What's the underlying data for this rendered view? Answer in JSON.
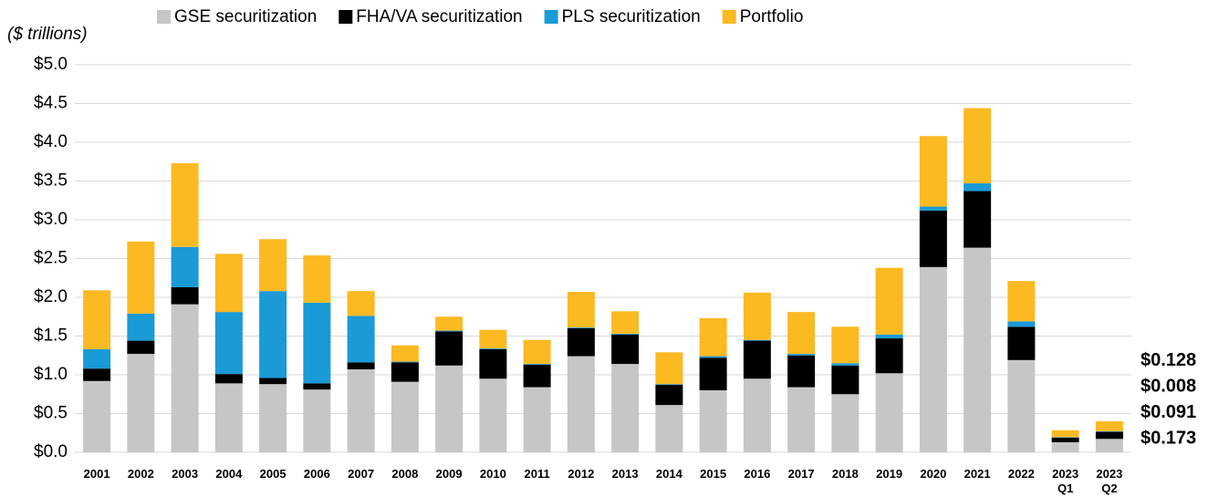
{
  "chart_data": {
    "type": "stacked_bar",
    "y_axis_label": "($ trillions)",
    "categories": [
      "2001",
      "2002",
      "2003",
      "2004",
      "2005",
      "2006",
      "2007",
      "2008",
      "2009",
      "2010",
      "2011",
      "2012",
      "2013",
      "2014",
      "2015",
      "2016",
      "2017",
      "2018",
      "2019",
      "2020",
      "2021",
      "2022",
      "2023\nQ1",
      "2023\nQ2"
    ],
    "series": [
      {
        "name": "GSE securitization",
        "color": "#c6c6c6",
        "label_color": "#8c8c8c",
        "values": [
          0.92,
          1.27,
          1.91,
          0.89,
          0.88,
          0.81,
          1.07,
          0.91,
          1.12,
          0.95,
          0.84,
          1.24,
          1.14,
          0.61,
          0.8,
          0.95,
          0.84,
          0.75,
          1.02,
          2.39,
          2.64,
          1.19,
          0.13,
          0.173
        ],
        "value_labels": [
          null,
          null,
          null,
          null,
          null,
          null,
          null,
          null,
          null,
          null,
          null,
          null,
          null,
          null,
          null,
          null,
          null,
          null,
          null,
          null,
          null,
          null,
          null,
          "$0.173"
        ]
      },
      {
        "name": "FHA/VA securitization",
        "color": "#000000",
        "label_color": "#000000",
        "values": [
          0.16,
          0.17,
          0.22,
          0.12,
          0.08,
          0.08,
          0.09,
          0.25,
          0.44,
          0.38,
          0.29,
          0.36,
          0.38,
          0.26,
          0.42,
          0.49,
          0.41,
          0.37,
          0.45,
          0.73,
          0.73,
          0.43,
          0.06,
          0.091
        ],
        "value_labels": [
          null,
          null,
          null,
          null,
          null,
          null,
          null,
          null,
          null,
          null,
          null,
          null,
          null,
          null,
          null,
          null,
          null,
          null,
          null,
          null,
          null,
          null,
          null,
          "$0.091"
        ]
      },
      {
        "name": "PLS securitization",
        "color": "#1a9ad6",
        "label_color": "#1f7cab",
        "values": [
          0.25,
          0.35,
          0.52,
          0.8,
          1.12,
          1.04,
          0.6,
          0.01,
          0.01,
          0.01,
          0.01,
          0.01,
          0.01,
          0.01,
          0.02,
          0.01,
          0.02,
          0.03,
          0.05,
          0.05,
          0.1,
          0.07,
          0.005,
          0.008
        ],
        "value_labels": [
          null,
          null,
          null,
          null,
          null,
          null,
          null,
          null,
          null,
          null,
          null,
          null,
          null,
          null,
          null,
          null,
          null,
          null,
          null,
          null,
          null,
          null,
          null,
          "$0.008"
        ]
      },
      {
        "name": "Portfolio",
        "color": "#fbb922",
        "label_color": "#c9961c",
        "values": [
          0.76,
          0.93,
          1.08,
          0.75,
          0.67,
          0.61,
          0.32,
          0.21,
          0.18,
          0.24,
          0.31,
          0.46,
          0.29,
          0.41,
          0.49,
          0.61,
          0.54,
          0.47,
          0.86,
          0.91,
          0.97,
          0.52,
          0.09,
          0.128
        ],
        "value_labels": [
          null,
          null,
          null,
          null,
          null,
          null,
          null,
          null,
          null,
          null,
          null,
          null,
          null,
          null,
          null,
          null,
          null,
          null,
          null,
          null,
          null,
          null,
          null,
          "$0.128"
        ]
      }
    ],
    "ylim": [
      0,
      5
    ],
    "yticks": [
      {
        "value": 0,
        "label": "$0.0"
      },
      {
        "value": 0.5,
        "label": "$0.5"
      },
      {
        "value": 1,
        "label": "$1.0"
      },
      {
        "value": 1.5,
        "label": "$1.5"
      },
      {
        "value": 2,
        "label": "$2.0"
      },
      {
        "value": 2.5,
        "label": "$2.5"
      },
      {
        "value": 3,
        "label": "$3.0"
      },
      {
        "value": 3.5,
        "label": "$3.5"
      },
      {
        "value": 4,
        "label": "$4.0"
      },
      {
        "value": 4.5,
        "label": "$4.5"
      },
      {
        "value": 5,
        "label": "$5.0"
      }
    ],
    "grid": true,
    "legend": "top"
  }
}
